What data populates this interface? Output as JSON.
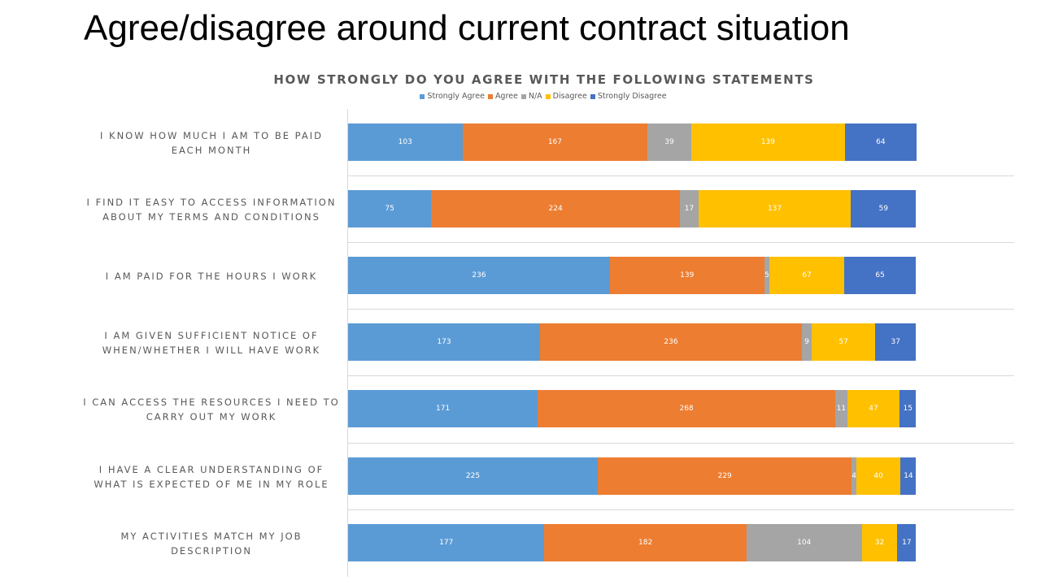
{
  "slide_title": "Agree/disagree around current contract situation",
  "chart_data": {
    "type": "bar",
    "orientation": "horizontal",
    "stacked": true,
    "title": "HOW STRONGLY DO YOU AGREE WITH THE FOLLOWING STATEMENTS",
    "legend_position": "top",
    "categories": [
      "I KNOW HOW MUCH I AM TO BE PAID EACH MONTH",
      "I FIND IT EASY TO ACCESS INFORMATION ABOUT MY TERMS AND CONDITIONS",
      "I AM PAID FOR THE HOURS I WORK",
      "I AM GIVEN SUFFICIENT NOTICE OF WHEN/WHETHER I WILL HAVE WORK",
      "I CAN ACCESS THE RESOURCES I NEED TO CARRY OUT MY WORK",
      "I HAVE A CLEAR UNDERSTANDING OF WHAT IS EXPECTED OF ME IN MY ROLE",
      "MY ACTIVITIES MATCH MY JOB DESCRIPTION"
    ],
    "series": [
      {
        "name": "Strongly Agree",
        "color": "#5b9bd5",
        "values": [
          103,
          75,
          236,
          173,
          171,
          225,
          177
        ]
      },
      {
        "name": "Agree",
        "color": "#ed7d31",
        "values": [
          167,
          224,
          139,
          236,
          268,
          229,
          182
        ]
      },
      {
        "name": "N/A",
        "color": "#a5a5a5",
        "values": [
          39,
          17,
          5,
          9,
          11,
          4,
          104
        ]
      },
      {
        "name": "Disagree",
        "color": "#ffc000",
        "values": [
          139,
          137,
          67,
          57,
          47,
          40,
          32
        ]
      },
      {
        "name": "Strongly Disagree",
        "color": "#4472c4",
        "values": [
          64,
          59,
          65,
          37,
          15,
          14,
          17
        ]
      }
    ],
    "xlim": [
      0,
      512
    ],
    "grid": false
  }
}
